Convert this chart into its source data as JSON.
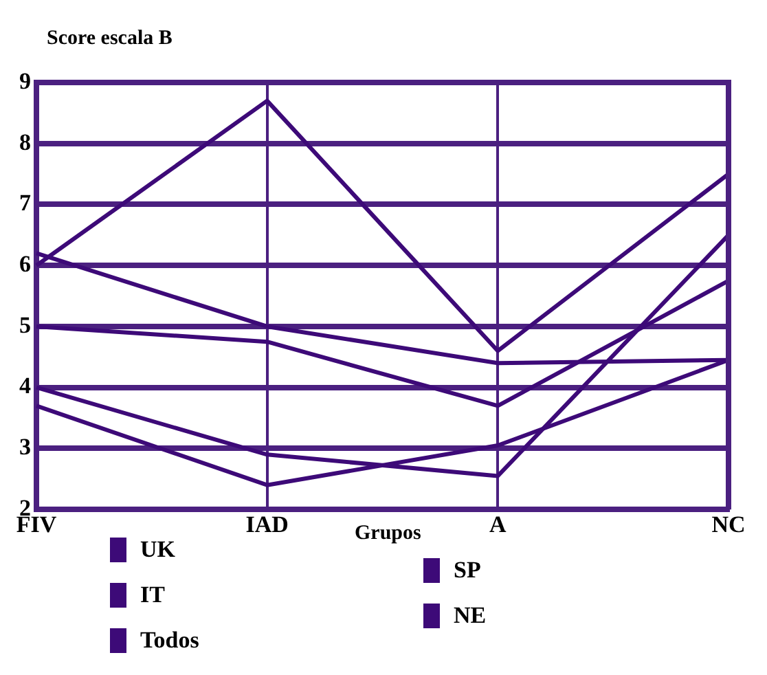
{
  "chart_data": {
    "type": "line",
    "ylabel": "Score escala B",
    "legend_title": "Grupos",
    "categories": [
      "FIV",
      "IAD",
      "A",
      "NC"
    ],
    "series": [
      {
        "name": "UK",
        "color": "#3d0a78",
        "values": [
          6.0,
          8.7,
          4.6,
          7.5
        ]
      },
      {
        "name": "IT",
        "color": "#3d0a78",
        "values": [
          6.2,
          5.0,
          4.4,
          4.45
        ]
      },
      {
        "name": "Todos",
        "color": "#3d0a78",
        "values": [
          5.0,
          4.75,
          3.7,
          5.75
        ]
      },
      {
        "name": "SP",
        "color": "#3d0a78",
        "values": [
          4.0,
          2.9,
          2.55,
          6.5
        ]
      },
      {
        "name": "NE",
        "color": "#3d0a78",
        "values": [
          3.7,
          2.4,
          3.05,
          4.45
        ]
      }
    ],
    "ylim": [
      2,
      9
    ],
    "yticks": [
      2,
      3,
      4,
      5,
      6,
      7,
      8,
      9
    ],
    "grid": true,
    "legend": "bottom",
    "marker": "none",
    "line_style": "solid"
  }
}
